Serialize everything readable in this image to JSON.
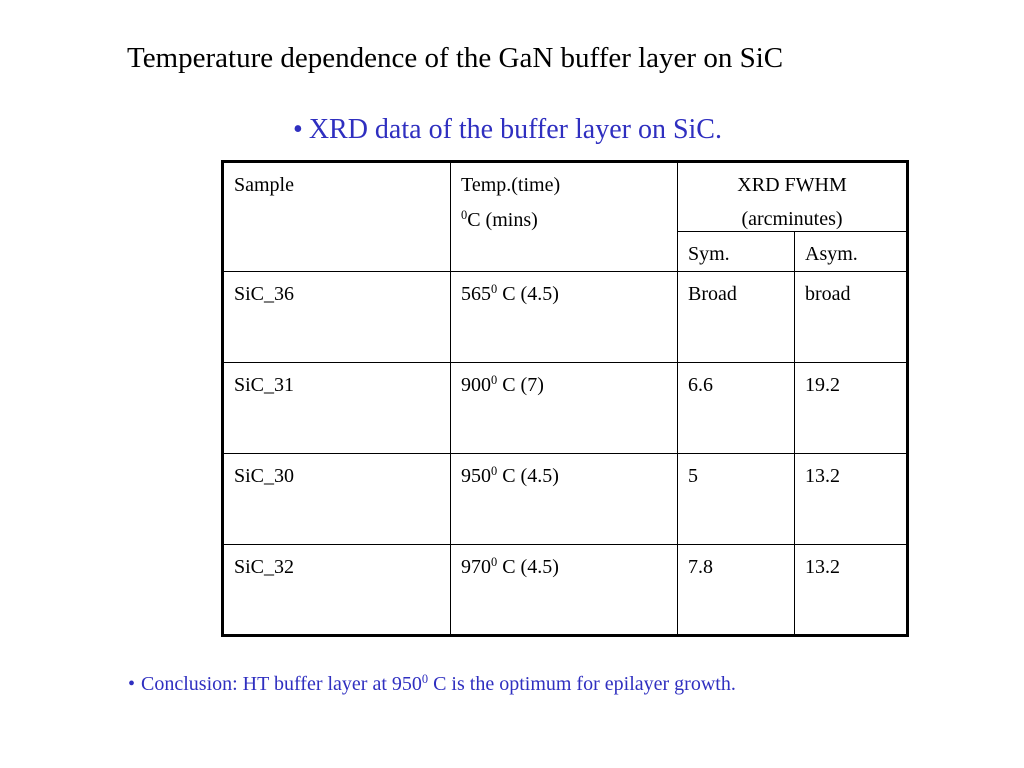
{
  "title": "Temperature dependence of the GaN buffer layer on SiC",
  "subtitle": {
    "bullet": "•",
    "text": "XRD data of the buffer layer on SiC.",
    "color": "#2f2fc0"
  },
  "table": {
    "headers": {
      "sample": "Sample",
      "temp_line1": "Temp.(time)",
      "temp_line2_sup": "0",
      "temp_line2": "C (mins)",
      "xrd_line1": "XRD FWHM",
      "xrd_line2": "(arcminutes)",
      "sym": "Sym.",
      "asym": "Asym."
    },
    "rows": [
      {
        "sample": "SiC_36",
        "temp_value": "565",
        "temp_sup": "0",
        "temp_rest": " C (4.5)",
        "sym": "Broad",
        "asym": "broad"
      },
      {
        "sample": "SiC_31",
        "temp_value": "900",
        "temp_sup": "0",
        "temp_rest": " C (7)",
        "sym": "6.6",
        "asym": "19.2"
      },
      {
        "sample": "SiC_30",
        "temp_value": "950",
        "temp_sup": "0",
        "temp_rest": " C (4.5)",
        "sym": "5",
        "asym": "13.2"
      },
      {
        "sample": "SiC_32",
        "temp_value": "970",
        "temp_sup": "0",
        "temp_rest": " C (4.5)",
        "sym": "7.8",
        "asym": "13.2"
      }
    ]
  },
  "conclusion": {
    "bullet": "•",
    "text_before": "Conclusion: HT buffer layer at 950",
    "sup": "0",
    "text_after": " C is the optimum for epilayer growth.",
    "color": "#2f2fc0"
  }
}
